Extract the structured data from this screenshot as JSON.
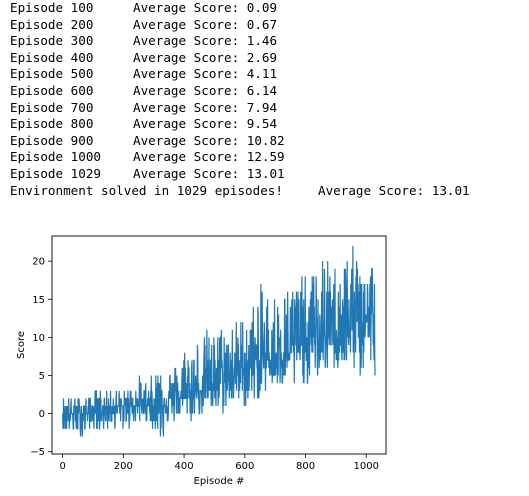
{
  "log": {
    "lines": [
      {
        "episode": "Episode 100",
        "score": "Average Score: 0.09"
      },
      {
        "episode": "Episode 200",
        "score": "Average Score: 0.67"
      },
      {
        "episode": "Episode 300",
        "score": "Average Score: 1.46"
      },
      {
        "episode": "Episode 400",
        "score": "Average Score: 2.69"
      },
      {
        "episode": "Episode 500",
        "score": "Average Score: 4.11"
      },
      {
        "episode": "Episode 600",
        "score": "Average Score: 6.14"
      },
      {
        "episode": "Episode 700",
        "score": "Average Score: 7.94"
      },
      {
        "episode": "Episode 800",
        "score": "Average Score: 9.54"
      },
      {
        "episode": "Episode 900",
        "score": "Average Score: 10.82"
      },
      {
        "episode": "Episode 1000",
        "score": "Average Score: 12.59"
      },
      {
        "episode": "Episode 1029",
        "score": "Average Score: 13.01"
      }
    ],
    "solved": {
      "message": "Environment solved in 1029 episodes!",
      "score": "Average Score: 13.01"
    }
  },
  "chart_data": {
    "type": "line",
    "title": "",
    "xlabel": "Episode #",
    "ylabel": "Score",
    "xlim": [
      -35,
      1065
    ],
    "ylim": [
      -5.3,
      23.3
    ],
    "xticks": [
      0,
      200,
      400,
      600,
      800,
      1000
    ],
    "yticks": [
      -5,
      0,
      5,
      10,
      15,
      20
    ],
    "grid": false,
    "line_color": "#1f77b4",
    "episodes": 1029,
    "series": [
      {
        "x": [
          0,
          25,
          50,
          75,
          100,
          125,
          150,
          175,
          200,
          225,
          250,
          275,
          300,
          325,
          350,
          375,
          400,
          425,
          450,
          475,
          500,
          525,
          550,
          575,
          600,
          625,
          650,
          675,
          700,
          725,
          750,
          775,
          800,
          825,
          850,
          875,
          900,
          925,
          950,
          975,
          1000,
          1029
        ],
        "y": [
          0.0,
          0.1,
          0.1,
          0.2,
          0.3,
          0.4,
          0.5,
          0.7,
          0.8,
          0.9,
          1.1,
          1.2,
          1.4,
          1.6,
          1.8,
          2.1,
          2.4,
          2.8,
          3.2,
          3.6,
          4.0,
          4.4,
          4.9,
          5.4,
          5.9,
          6.4,
          6.9,
          7.3,
          7.7,
          8.1,
          8.5,
          8.9,
          9.3,
          9.6,
          10.0,
          10.4,
          10.8,
          11.2,
          11.6,
          12.0,
          12.5,
          13.0
        ],
        "min": [
          -2,
          -3,
          -3,
          -3,
          -2,
          -2,
          -2,
          -2,
          -2,
          -2,
          -1,
          -1,
          -2,
          -4,
          -1,
          -1,
          -1,
          -1,
          0,
          0,
          0,
          0,
          1,
          1,
          1,
          1,
          2,
          3,
          3,
          3,
          3,
          3,
          4,
          4,
          5,
          5,
          6,
          6,
          5,
          5,
          4,
          5
        ],
        "max": [
          2,
          2,
          2,
          2,
          3,
          3,
          3,
          3,
          3,
          4,
          5,
          4,
          5,
          8,
          6,
          7,
          9,
          9,
          10,
          11,
          11,
          12,
          12,
          12,
          13,
          14,
          17,
          16,
          16,
          16,
          17,
          18,
          18,
          19,
          21,
          20,
          20,
          21,
          22,
          21,
          22,
          20
        ]
      }
    ]
  }
}
